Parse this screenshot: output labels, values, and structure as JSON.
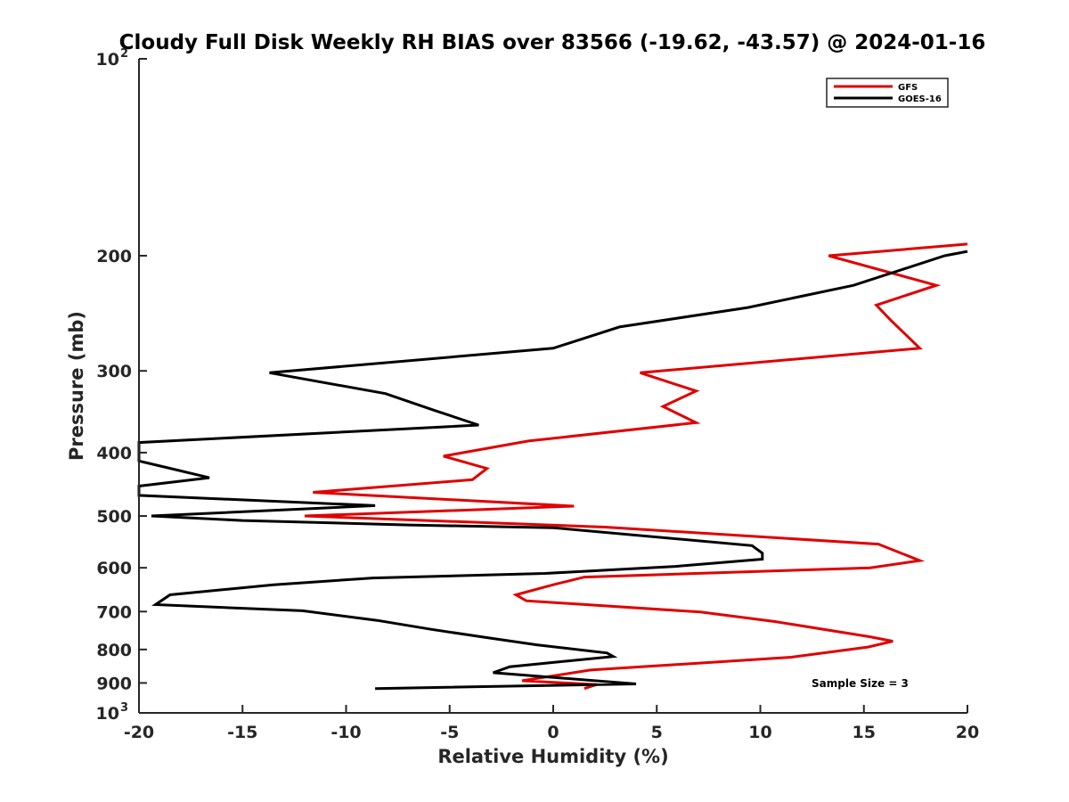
{
  "chart_data": {
    "type": "line",
    "title": "Cloudy Full Disk Weekly RH BIAS over 83566 (-19.62, -43.57) @ 2024-01-16",
    "xlabel": "Relative Humidity (%)",
    "ylabel": "Pressure (mb)",
    "xlim": [
      -20,
      20
    ],
    "ylim": [
      100,
      1000
    ],
    "y_scale": "log",
    "y_reversed": true,
    "grid": false,
    "legend_position": "top-right",
    "x_ticks": [
      "-20",
      "-15",
      "-10",
      "-5",
      "0",
      "5",
      "10",
      "15",
      "20"
    ],
    "y_ticks": [
      "200",
      "300",
      "400",
      "500",
      "600",
      "700",
      "800",
      "900"
    ],
    "y_tick_values": [
      200,
      300,
      400,
      500,
      600,
      700,
      800,
      900
    ],
    "y_decade_labels": [
      {
        "value": 100,
        "base": "10",
        "exp": "2"
      },
      {
        "value": 1000,
        "base": "10",
        "exp": "3"
      }
    ],
    "annotation": "Sample Size = 3",
    "series": [
      {
        "name": "GFS",
        "color": "#e00000",
        "points": [
          [
            20,
            192
          ],
          [
            13.3,
            200
          ],
          [
            18.5,
            222
          ],
          [
            15.6,
            238
          ],
          [
            16.3,
            251
          ],
          [
            17.7,
            277
          ],
          [
            4.2,
            302
          ],
          [
            6.9,
            322
          ],
          [
            5.3,
            340
          ],
          [
            6.9,
            360
          ],
          [
            -1.2,
            384
          ],
          [
            -5.3,
            405
          ],
          [
            -3.2,
            423
          ],
          [
            -3.9,
            440
          ],
          [
            -11.6,
            460
          ],
          [
            1.0,
            483
          ],
          [
            -12.0,
            500
          ],
          [
            2.5,
            520
          ],
          [
            15.7,
            552
          ],
          [
            17.7,
            585
          ],
          [
            15.3,
            600
          ],
          [
            1.5,
            620
          ],
          [
            0,
            637
          ],
          [
            -1.8,
            660
          ],
          [
            -1.3,
            674
          ],
          [
            7.1,
            701
          ],
          [
            10.7,
            725
          ],
          [
            15.3,
            765
          ],
          [
            16.4,
            777
          ],
          [
            15.2,
            793
          ],
          [
            11.5,
            822
          ],
          [
            1.8,
            860
          ],
          [
            -1.5,
            893
          ],
          [
            2.1,
            905
          ],
          [
            1.5,
            918
          ]
        ]
      },
      {
        "name": "GOES-16",
        "color": "#000000",
        "points": [
          [
            20,
            197
          ],
          [
            18.9,
            200
          ],
          [
            14.5,
            222
          ],
          [
            9.4,
            240
          ],
          [
            3.2,
            257
          ],
          [
            0,
            277
          ],
          [
            -13.7,
            302
          ],
          [
            -8.1,
            325
          ],
          [
            -5.7,
            345
          ],
          [
            -3.6,
            363
          ],
          [
            -20,
            386
          ],
          [
            -20,
            412
          ],
          [
            -18.6,
            422
          ],
          [
            -16.6,
            437
          ],
          [
            -20,
            450
          ],
          [
            -20,
            465
          ],
          [
            -8.6,
            482
          ],
          [
            -19.4,
            500
          ],
          [
            -15.0,
            508
          ],
          [
            -7.0,
            516
          ],
          [
            0,
            521
          ],
          [
            9.6,
            555
          ],
          [
            10.1,
            570
          ],
          [
            10.1,
            582
          ],
          [
            5.9,
            597
          ],
          [
            -0.4,
            612
          ],
          [
            -8.7,
            622
          ],
          [
            -13.5,
            637
          ],
          [
            -18.5,
            660
          ],
          [
            -19.2,
            683
          ],
          [
            -12.1,
            698
          ],
          [
            -8.5,
            722
          ],
          [
            -5.9,
            745
          ],
          [
            -3.1,
            768
          ],
          [
            -0.8,
            787
          ],
          [
            2.6,
            810
          ],
          [
            2.9,
            820
          ],
          [
            -2.1,
            850
          ],
          [
            -2.9,
            868
          ],
          [
            4.0,
            903
          ],
          [
            -8.6,
            918
          ]
        ]
      }
    ]
  }
}
